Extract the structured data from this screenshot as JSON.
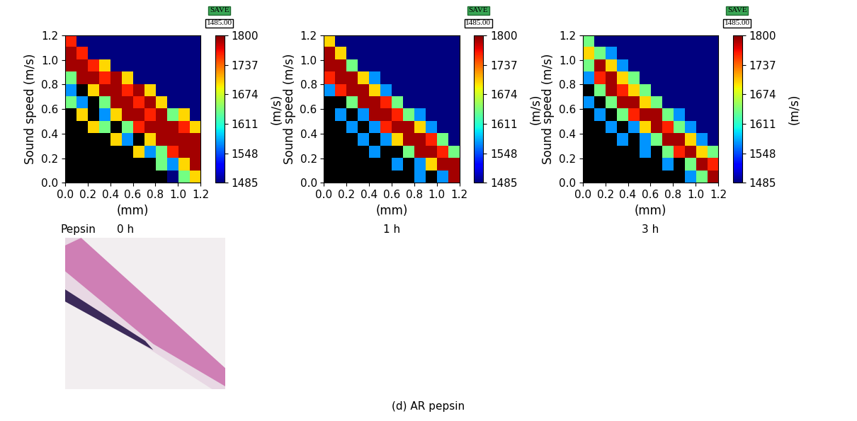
{
  "chart_data": [
    {
      "type": "heatmap",
      "group_label": "Pepsin",
      "caption": "0 h",
      "y_label": "Sound speed (m/s)",
      "x_label": "(mm)",
      "xlim": [
        0,
        1.2
      ],
      "ylim": [
        0,
        1.2
      ],
      "xticks": [
        {
          "value": 0,
          "label": "0.0"
        },
        0.2,
        0.4,
        0.6,
        0.8,
        {
          "value": 1,
          "label": "1.0"
        },
        1.2
      ],
      "yticks": [
        {
          "value": 0,
          "label": "0.0"
        },
        0.2,
        0.4,
        0.6,
        0.8,
        {
          "value": 1,
          "label": "1.0"
        },
        1.2
      ],
      "color_range": [
        1485,
        1800
      ],
      "color_ticks": [
        1485,
        1548,
        1611,
        1674,
        1737,
        1800
      ],
      "colorbar_label": "(m/s)",
      "button": "SAVE",
      "button_value": "1485.00",
      "cells": [
        [
          1760,
          1485,
          1485,
          1485,
          1485,
          1485,
          1485,
          1485,
          1485,
          1485,
          1485,
          1485
        ],
        [
          1790,
          1760,
          1485,
          1485,
          1485,
          1485,
          1485,
          1485,
          1485,
          1485,
          1485,
          1485
        ],
        [
          1790,
          1790,
          1760,
          1700,
          1485,
          1485,
          1485,
          1485,
          1485,
          1485,
          1485,
          1485
        ],
        [
          1640,
          1790,
          1790,
          1760,
          1790,
          1700,
          1485,
          1485,
          1485,
          1485,
          1485,
          1485
        ],
        [
          1570,
          null,
          1700,
          1790,
          1790,
          1760,
          1790,
          1700,
          1485,
          1485,
          1485,
          1485
        ],
        [
          1640,
          1570,
          null,
          1640,
          1790,
          1790,
          1760,
          1790,
          1700,
          1485,
          1485,
          1485
        ],
        [
          null,
          1700,
          null,
          1570,
          1700,
          1790,
          1790,
          1760,
          1790,
          1640,
          1700,
          1485
        ],
        [
          null,
          null,
          1700,
          1640,
          null,
          1640,
          1760,
          1790,
          1790,
          1790,
          1760,
          1700
        ],
        [
          null,
          null,
          null,
          null,
          1700,
          1570,
          null,
          1700,
          1790,
          1790,
          1790,
          1790
        ],
        [
          null,
          null,
          null,
          null,
          null,
          null,
          1700,
          1570,
          1640,
          1760,
          1790,
          1790
        ],
        [
          null,
          null,
          null,
          null,
          null,
          null,
          null,
          null,
          1640,
          1570,
          1700,
          1790
        ],
        [
          null,
          null,
          null,
          null,
          null,
          null,
          null,
          null,
          null,
          1485,
          1640,
          1700
        ]
      ]
    },
    {
      "type": "heatmap",
      "caption": "1 h",
      "y_label": "Sound speed (m/s)",
      "x_label": "(mm)",
      "xlim": [
        0,
        1.2
      ],
      "ylim": [
        0,
        1.2
      ],
      "xticks": [
        {
          "value": 0,
          "label": "0.0"
        },
        0.2,
        0.4,
        0.6,
        0.8,
        {
          "value": 1,
          "label": "1.0"
        },
        1.2
      ],
      "yticks": [
        {
          "value": 0,
          "label": "0.0"
        },
        0.2,
        0.4,
        0.6,
        0.8,
        {
          "value": 1,
          "label": "1.0"
        },
        1.2
      ],
      "color_range": [
        1485,
        1800
      ],
      "color_ticks": [
        1485,
        1548,
        1611,
        1674,
        1737,
        1800
      ],
      "colorbar_label": "(m/s)",
      "button": "SAVE",
      "button_value": "1485.00",
      "cells": [
        [
          1700,
          1485,
          1485,
          1485,
          1485,
          1485,
          1485,
          1485,
          1485,
          1485,
          1485,
          1485
        ],
        [
          1790,
          1700,
          1485,
          1485,
          1485,
          1485,
          1485,
          1485,
          1485,
          1485,
          1485,
          1485
        ],
        [
          1790,
          1790,
          1640,
          1485,
          1485,
          1485,
          1485,
          1485,
          1485,
          1485,
          1485,
          1485
        ],
        [
          1760,
          1790,
          1790,
          1700,
          1570,
          1485,
          1485,
          1485,
          1485,
          1485,
          1485,
          1485
        ],
        [
          1570,
          1760,
          1790,
          1790,
          1700,
          1570,
          1485,
          1485,
          1485,
          1485,
          1485,
          1485
        ],
        [
          null,
          null,
          1640,
          1790,
          1790,
          1760,
          1640,
          1485,
          1485,
          1485,
          1485,
          1485
        ],
        [
          null,
          1570,
          null,
          1570,
          1790,
          1790,
          1760,
          1640,
          1570,
          1485,
          1485,
          1485
        ],
        [
          null,
          null,
          1570,
          null,
          1570,
          1760,
          1790,
          1790,
          1700,
          1570,
          1485,
          1485
        ],
        [
          null,
          null,
          null,
          1570,
          null,
          1570,
          1700,
          1790,
          1790,
          1760,
          1640,
          1485
        ],
        [
          null,
          null,
          null,
          null,
          1570,
          null,
          null,
          1640,
          1790,
          1790,
          1760,
          1640
        ],
        [
          null,
          null,
          null,
          null,
          null,
          null,
          1570,
          null,
          1570,
          1700,
          1790,
          1790
        ],
        [
          null,
          null,
          null,
          null,
          null,
          null,
          null,
          null,
          1570,
          null,
          1570,
          1790
        ]
      ]
    },
    {
      "type": "heatmap",
      "caption": "3 h",
      "y_label": "Sound speed (m/s)",
      "x_label": "(mm)",
      "xlim": [
        0,
        1.2
      ],
      "ylim": [
        0,
        1.2
      ],
      "xticks": [
        {
          "value": 0,
          "label": "0.0"
        },
        0.2,
        0.4,
        0.6,
        0.8,
        {
          "value": 1,
          "label": "1.0"
        },
        1.2
      ],
      "yticks": [
        {
          "value": 0,
          "label": "0.0"
        },
        0.2,
        0.4,
        0.6,
        0.8,
        {
          "value": 1,
          "label": "1.0"
        },
        1.2
      ],
      "color_range": [
        1485,
        1800
      ],
      "color_ticks": [
        1485,
        1548,
        1611,
        1674,
        1737,
        1800
      ],
      "colorbar_label": "(m/s)",
      "button": "SAVE",
      "button_value": "1485.00",
      "cells": [
        [
          1640,
          1485,
          1485,
          1485,
          1485,
          1485,
          1485,
          1485,
          1485,
          1485,
          1485,
          1485
        ],
        [
          1700,
          1640,
          1570,
          1485,
          1485,
          1485,
          1485,
          1485,
          1485,
          1485,
          1485,
          1485
        ],
        [
          1640,
          1790,
          1700,
          1570,
          1485,
          1485,
          1485,
          1485,
          1485,
          1485,
          1485,
          1485
        ],
        [
          1570,
          1760,
          1790,
          1700,
          1640,
          1485,
          1485,
          1485,
          1485,
          1485,
          1485,
          1485
        ],
        [
          null,
          1640,
          1790,
          1760,
          1700,
          1640,
          1485,
          1485,
          1485,
          1485,
          1485,
          1485
        ],
        [
          1570,
          null,
          1640,
          1790,
          1790,
          1700,
          1640,
          1485,
          1485,
          1485,
          1485,
          1485
        ],
        [
          null,
          1570,
          null,
          1640,
          1760,
          1790,
          1790,
          1640,
          1570,
          1485,
          1485,
          1485
        ],
        [
          null,
          null,
          1570,
          null,
          1570,
          1700,
          1790,
          1760,
          1640,
          1570,
          1485,
          1485
        ],
        [
          null,
          null,
          null,
          1570,
          null,
          1570,
          1640,
          1790,
          1790,
          1700,
          1570,
          1485
        ],
        [
          null,
          null,
          null,
          null,
          null,
          1570,
          null,
          1640,
          1760,
          1790,
          1700,
          1640
        ],
        [
          null,
          null,
          null,
          null,
          null,
          null,
          null,
          1570,
          null,
          1640,
          1790,
          1760
        ],
        [
          null,
          null,
          null,
          null,
          null,
          null,
          null,
          null,
          null,
          1570,
          1640,
          1790
        ]
      ]
    }
  ],
  "caption": "(d) AR pepsin"
}
